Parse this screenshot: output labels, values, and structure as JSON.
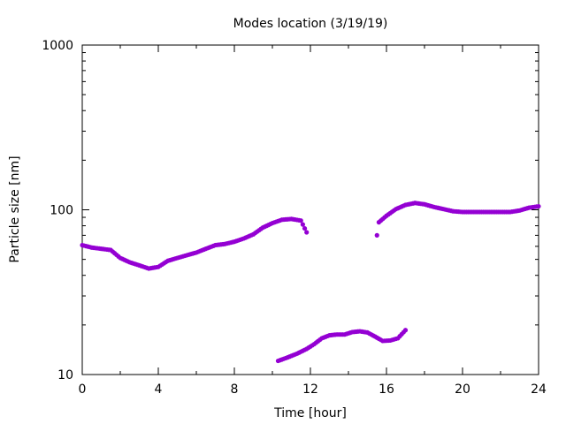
{
  "chart_data": {
    "type": "scatter",
    "title": "Modes location (3/19/19)",
    "xlabel": "Time [hour]",
    "ylabel": "Particle size [nm]",
    "xlim": [
      0,
      24
    ],
    "ylim": [
      10,
      1000
    ],
    "yscale": "log",
    "grid": false,
    "legend": "none",
    "x_ticks": [
      0,
      4,
      8,
      12,
      16,
      20,
      24
    ],
    "x_tick_labels": [
      "0",
      "4",
      "8",
      "12",
      "16",
      "20",
      "24"
    ],
    "y_ticks": [
      10,
      100,
      1000
    ],
    "y_tick_labels": [
      "10",
      "100",
      "1000"
    ],
    "marker_color": "#9400d3",
    "series": [
      {
        "x": [
          0,
          0.5,
          1,
          1.5,
          2,
          2.5,
          3,
          3.5,
          4,
          4.5,
          5,
          5.5,
          6,
          6.5,
          7,
          7.5,
          8,
          8.5,
          9,
          9.5,
          10,
          10.5,
          11,
          11.5,
          11.8
        ],
        "y": [
          61,
          59,
          58,
          57,
          51,
          48,
          46,
          44,
          45,
          49,
          51,
          53,
          55,
          58,
          61,
          62,
          64,
          67,
          71,
          78,
          83,
          87,
          88,
          86,
          73
        ]
      },
      {
        "x": [
          10.3,
          10.8,
          11.3,
          11.8,
          12.2,
          12.6,
          13,
          13.4,
          13.8,
          14.2,
          14.6,
          15,
          15.4,
          15.8,
          16.2,
          16.6,
          17
        ],
        "y": [
          12.1,
          12.7,
          13.4,
          14.3,
          15.3,
          16.6,
          17.3,
          17.5,
          17.5,
          18.1,
          18.3,
          18,
          17,
          16,
          16.1,
          16.6,
          18.6
        ]
      },
      {
        "x": [
          15.5,
          15.6,
          16,
          16.5,
          17,
          17.5,
          18,
          18.5,
          19,
          19.5,
          20,
          20.5,
          21,
          21.5,
          22,
          22.5,
          23,
          23.5,
          24
        ],
        "y": [
          70,
          84,
          92,
          101,
          107,
          110,
          108,
          104,
          101,
          98,
          97,
          97,
          97,
          97,
          97,
          97,
          99,
          103,
          105
        ]
      }
    ]
  }
}
